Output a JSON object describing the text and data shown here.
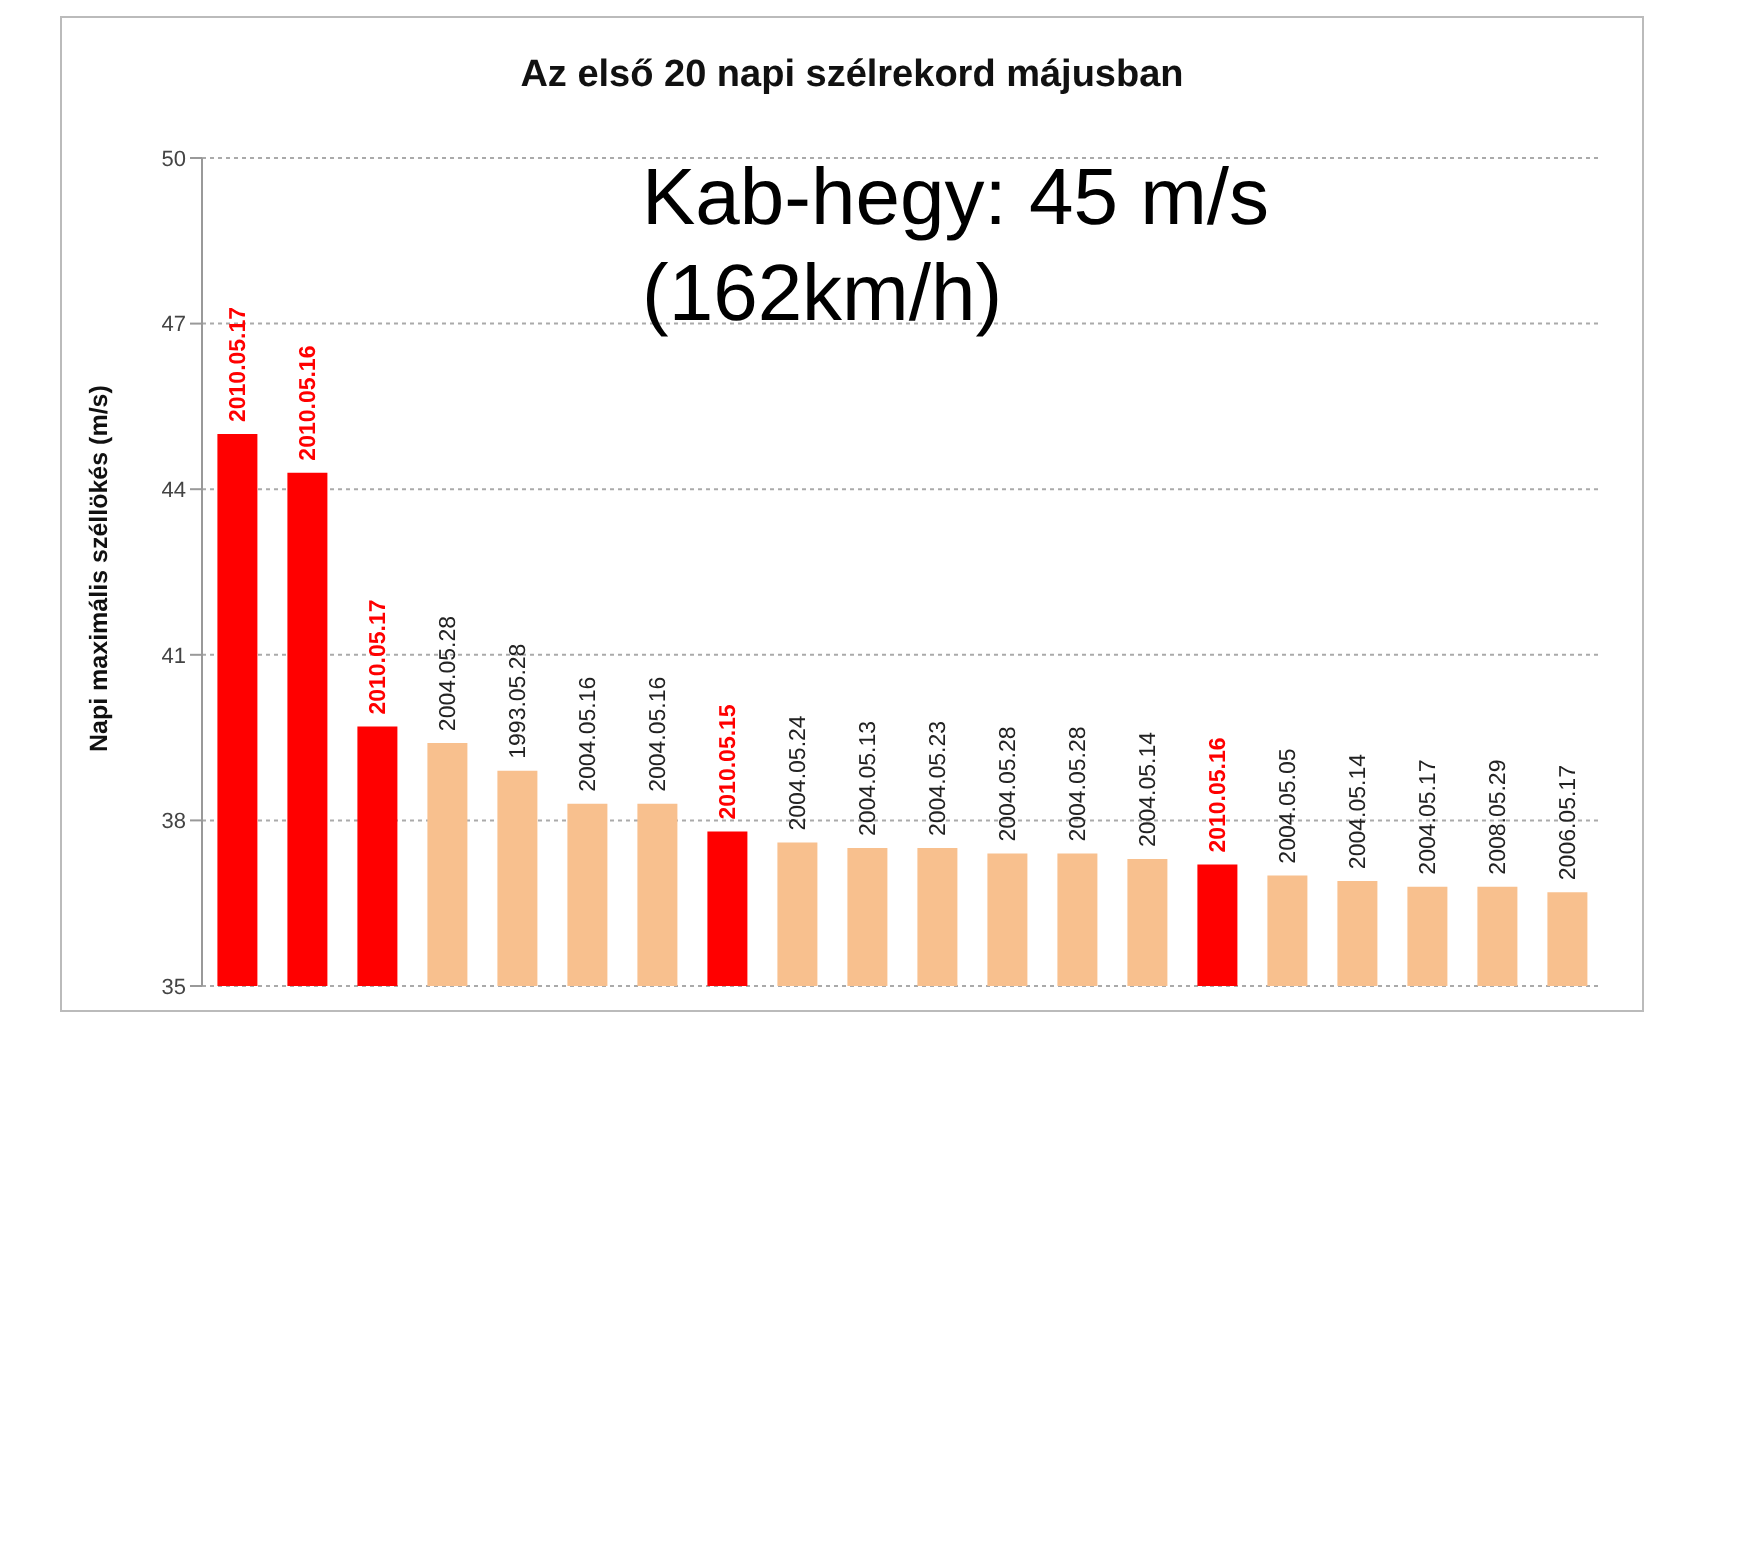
{
  "chart_data": {
    "type": "bar",
    "title": "Az első 20 napi szélrekord májusban",
    "ylabel": "Napi maximális széllökés (m/s)",
    "categories": [
      "2010.05.17",
      "2010.05.16",
      "2010.05.17",
      "2004.05.28",
      "1993.05.28",
      "2004.05.16",
      "2004.05.16",
      "2010.05.15",
      "2004.05.24",
      "2004.05.13",
      "2004.05.23",
      "2004.05.28",
      "2004.05.28",
      "2004.05.14",
      "2010.05.16",
      "2004.05.05",
      "2004.05.14",
      "2004.05.17",
      "2008.05.29",
      "2006.05.17"
    ],
    "values": [
      45.0,
      44.3,
      39.7,
      39.4,
      38.9,
      38.3,
      38.3,
      37.8,
      37.6,
      37.5,
      37.5,
      37.4,
      37.4,
      37.3,
      37.2,
      37.0,
      36.9,
      36.8,
      36.8,
      36.7
    ],
    "colors": [
      "#ff0000",
      "#ff0000",
      "#ff0000",
      "#f8c08e",
      "#f8c08e",
      "#f8c08e",
      "#f8c08e",
      "#ff0000",
      "#f8c08e",
      "#f8c08e",
      "#f8c08e",
      "#f8c08e",
      "#f8c08e",
      "#f8c08e",
      "#ff0000",
      "#f8c08e",
      "#f8c08e",
      "#f8c08e",
      "#f8c08e",
      "#f8c08e"
    ],
    "ylim": [
      35,
      50
    ],
    "yticks": [
      35,
      38,
      41,
      44,
      47,
      50
    ],
    "grid": "y",
    "annotations": [
      "Kab-hegy: 45 m/s",
      "(162km/h)"
    ]
  }
}
